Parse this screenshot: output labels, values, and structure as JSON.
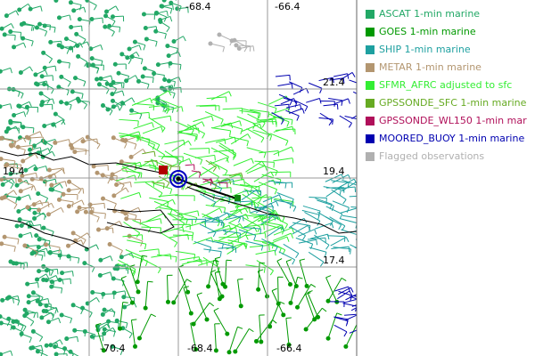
{
  "map": {
    "lon_labels_top": [
      "-68.4",
      "-66.4"
    ],
    "lon_labels_bottom": [
      "-70.4",
      "-68.4",
      "-66.4"
    ],
    "lat_labels_right": [
      "21.4",
      "19.4",
      "17.4"
    ],
    "lat_labels_left": [
      "19.4"
    ]
  },
  "legend": [
    {
      "label": "ASCAT 1-min marine",
      "color": "#22a866"
    },
    {
      "label": "GOES 1-min marine",
      "color": "#009900"
    },
    {
      "label": "SHIP 1-min marine",
      "color": "#1ea0a0"
    },
    {
      "label": "METAR 1-min marine",
      "color": "#b39670"
    },
    {
      "label": "SFMR_AFRC adjusted to sfc",
      "color": "#33ee33"
    },
    {
      "label": "GPSSONDE_SFC 1-min marine",
      "color": "#66aa22"
    },
    {
      "label": "GPSSONDE_WL150 1-min mar",
      "color": "#b0105a"
    },
    {
      "label": "MOORED_BUOY 1-min marine",
      "color": "#0000b0"
    },
    {
      "label": "Flagged observations",
      "color": "#b0b0b0"
    }
  ]
}
